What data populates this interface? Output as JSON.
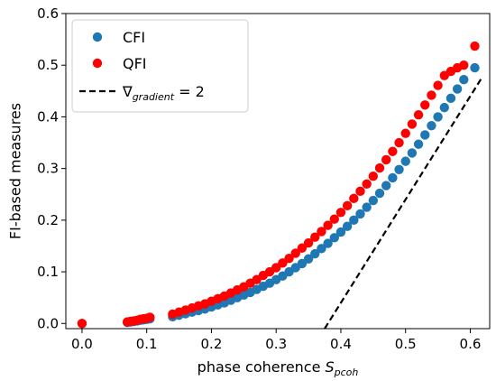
{
  "chart_data": {
    "type": "scatter",
    "title": "",
    "xlabel": "phase coherence",
    "xlabel_symbol": "S",
    "xlabel_subscript": "pcoh",
    "ylabel": "FI-based measures",
    "xlim": [
      -0.025,
      0.63
    ],
    "ylim": [
      -0.01,
      0.6
    ],
    "xticks": [
      0.0,
      0.1,
      0.2,
      0.3,
      0.4,
      0.5,
      0.6
    ],
    "xtick_labels": [
      "0.0",
      "0.1",
      "0.2",
      "0.3",
      "0.4",
      "0.5",
      "0.6"
    ],
    "yticks": [
      0.0,
      0.1,
      0.2,
      0.3,
      0.4,
      0.5,
      0.6
    ],
    "ytick_labels": [
      "0.0",
      "0.1",
      "0.2",
      "0.3",
      "0.4",
      "0.5",
      "0.6"
    ],
    "grid": false,
    "legend_position": "top-left",
    "colors": {
      "cfi": "#1f77b4",
      "qfi": "#ff0000",
      "line": "#000000"
    },
    "series": [
      {
        "name": "CFI",
        "kind": "scatter",
        "color": "#1f77b4",
        "x": [
          0.0,
          0.07,
          0.075,
          0.08,
          0.085,
          0.09,
          0.095,
          0.1,
          0.105,
          0.14,
          0.15,
          0.16,
          0.17,
          0.18,
          0.19,
          0.2,
          0.21,
          0.22,
          0.23,
          0.24,
          0.25,
          0.26,
          0.27,
          0.28,
          0.29,
          0.3,
          0.31,
          0.32,
          0.33,
          0.34,
          0.35,
          0.36,
          0.37,
          0.38,
          0.39,
          0.4,
          0.41,
          0.42,
          0.43,
          0.44,
          0.45,
          0.46,
          0.47,
          0.48,
          0.49,
          0.5,
          0.51,
          0.52,
          0.53,
          0.54,
          0.55,
          0.56,
          0.57,
          0.58,
          0.59,
          0.607
        ],
        "y": [
          0.0,
          0.002,
          0.003,
          0.004,
          0.005,
          0.006,
          0.007,
          0.008,
          0.009,
          0.013,
          0.016,
          0.019,
          0.022,
          0.025,
          0.028,
          0.032,
          0.036,
          0.04,
          0.045,
          0.05,
          0.055,
          0.06,
          0.066,
          0.072,
          0.078,
          0.085,
          0.092,
          0.1,
          0.108,
          0.116,
          0.125,
          0.135,
          0.145,
          0.155,
          0.166,
          0.177,
          0.188,
          0.2,
          0.212,
          0.225,
          0.238,
          0.252,
          0.267,
          0.282,
          0.298,
          0.314,
          0.33,
          0.347,
          0.365,
          0.383,
          0.4,
          0.418,
          0.436,
          0.454,
          0.472,
          0.495
        ]
      },
      {
        "name": "QFI",
        "kind": "scatter",
        "color": "#ff0000",
        "x": [
          0.0,
          0.07,
          0.075,
          0.08,
          0.085,
          0.09,
          0.095,
          0.1,
          0.105,
          0.14,
          0.15,
          0.16,
          0.17,
          0.18,
          0.19,
          0.2,
          0.21,
          0.22,
          0.23,
          0.24,
          0.25,
          0.26,
          0.27,
          0.28,
          0.29,
          0.3,
          0.31,
          0.32,
          0.33,
          0.34,
          0.35,
          0.36,
          0.37,
          0.38,
          0.39,
          0.4,
          0.41,
          0.42,
          0.43,
          0.44,
          0.45,
          0.46,
          0.47,
          0.48,
          0.49,
          0.5,
          0.51,
          0.52,
          0.53,
          0.54,
          0.55,
          0.56,
          0.57,
          0.58,
          0.59,
          0.607
        ],
        "y": [
          0.0,
          0.003,
          0.004,
          0.005,
          0.006,
          0.008,
          0.009,
          0.01,
          0.012,
          0.018,
          0.022,
          0.026,
          0.03,
          0.034,
          0.038,
          0.043,
          0.048,
          0.053,
          0.059,
          0.065,
          0.071,
          0.078,
          0.085,
          0.093,
          0.1,
          0.108,
          0.117,
          0.126,
          0.136,
          0.146,
          0.156,
          0.167,
          0.178,
          0.19,
          0.202,
          0.215,
          0.228,
          0.242,
          0.256,
          0.27,
          0.285,
          0.301,
          0.317,
          0.333,
          0.35,
          0.368,
          0.386,
          0.404,
          0.423,
          0.442,
          0.461,
          0.48,
          0.488,
          0.495,
          0.5,
          0.537
        ]
      },
      {
        "name": "∇",
        "name_subscript": "gradient",
        "name_suffix": " = 2",
        "kind": "line",
        "style": "dashed",
        "color": "#000000",
        "x": [
          0.375,
          0.617
        ],
        "y": [
          -0.01,
          0.474
        ]
      }
    ]
  }
}
